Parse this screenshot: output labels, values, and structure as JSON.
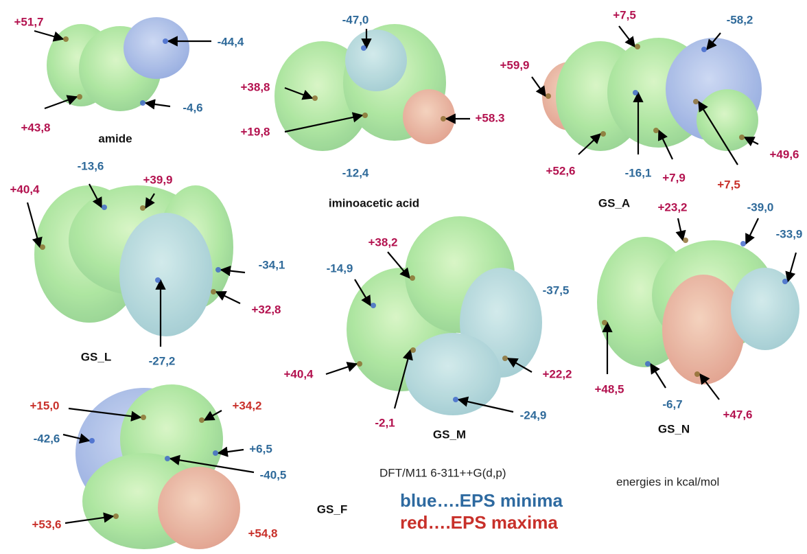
{
  "molecules": [
    {
      "name": "amide",
      "labels": [
        "+51,7",
        "-44,4",
        "+43,8",
        "-4,6"
      ]
    },
    {
      "name": "iminoacetic acid",
      "labels": [
        "-47,0",
        "+38,8",
        "+19,8",
        "+58.3",
        "-12,4"
      ]
    },
    {
      "name": "GS_A",
      "labels": [
        "+7,5",
        "-58,2",
        "+59,9",
        "+52,6",
        "-16,1",
        "+7,9",
        "+7,5",
        "+49,6"
      ]
    },
    {
      "name": "GS_L",
      "labels": [
        "+40,4",
        "-13,6",
        "+39,9",
        "-34,1",
        "+32,8",
        "-27,2"
      ]
    },
    {
      "name": "GS_M",
      "labels": [
        "+38,2",
        "-14,9",
        "-37,5",
        "+40,4",
        "+22,2",
        "-2,1",
        "-24,9"
      ]
    },
    {
      "name": "GS_N",
      "labels": [
        "+23,2",
        "-39,0",
        "-33,9",
        "+48,5",
        "-6,7",
        "+47,6"
      ]
    },
    {
      "name": "GS_F",
      "labels": [
        "+15,0",
        "+34,2",
        "-42,6",
        "+6,5",
        "-40,5",
        "+53,6",
        "+54,8"
      ]
    }
  ],
  "method": "DFT/M11 6-311++G(d,p)",
  "units": "energies in kcal/mol",
  "legend": {
    "blue": "blue….EPS minima",
    "red": "red….EPS maxima"
  }
}
